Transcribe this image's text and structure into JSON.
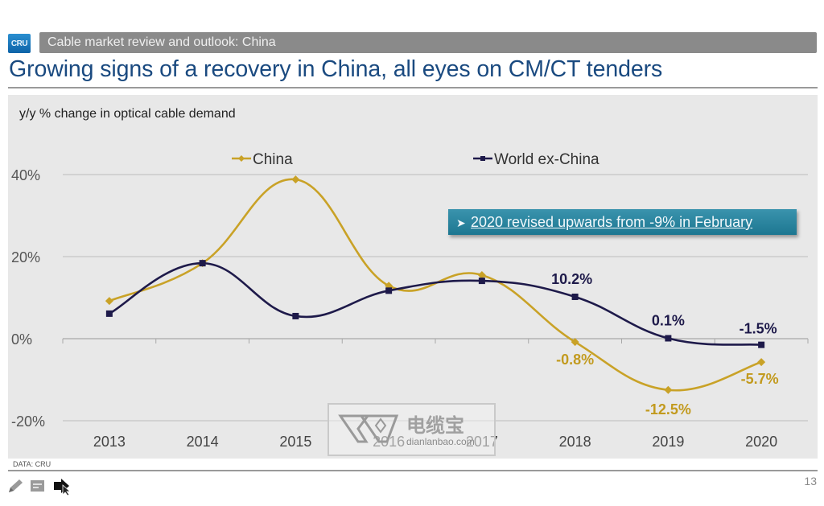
{
  "header": {
    "logo_text": "CRU",
    "section": "Cable market review and outlook: China",
    "title": "Growing signs of a recovery in China, all eyes on CM/CT tenders"
  },
  "footer": {
    "source": "DATA: CRU",
    "page_number": "13"
  },
  "toolbar": {
    "tools": [
      "pen-icon",
      "screen-icon",
      "pointer-icon"
    ]
  },
  "callout": {
    "text": "2020 revised upwards from -9% in February"
  },
  "watermark": {
    "chinese": "电缆宝",
    "url": "dianlanbao.com"
  },
  "colors": {
    "china": "#c9a227",
    "world": "#1e1a4a",
    "title": "#1a4a80",
    "callout": "#2a87a2"
  },
  "chart_data": {
    "type": "line",
    "title": "y/y % change in optical cable demand",
    "xlabel": "",
    "ylabel": "",
    "categories": [
      "2013",
      "2014",
      "2015",
      "2016",
      "2017",
      "2018",
      "2019",
      "2020"
    ],
    "ylim": [
      -20,
      40
    ],
    "yticks": [
      40,
      20,
      0,
      -20
    ],
    "ytick_labels": [
      "40%",
      "20%",
      "0%",
      "-20%"
    ],
    "grid": true,
    "legend_position": "top",
    "smooth": true,
    "series": [
      {
        "name": "China",
        "marker": "diamond",
        "values": [
          9.2,
          18.4,
          38.8,
          12.9,
          15.5,
          -0.8,
          -12.5,
          -5.7
        ],
        "data_labels": {
          "5": "-0.8%",
          "6": "-12.5%",
          "7": "-5.7%"
        }
      },
      {
        "name": "World ex-China",
        "marker": "square",
        "values": [
          6.1,
          18.4,
          5.5,
          11.7,
          14.1,
          10.2,
          0.1,
          -1.5
        ],
        "data_labels": {
          "5": "10.2%",
          "6": "0.1%",
          "7": "-1.5%"
        }
      }
    ]
  }
}
